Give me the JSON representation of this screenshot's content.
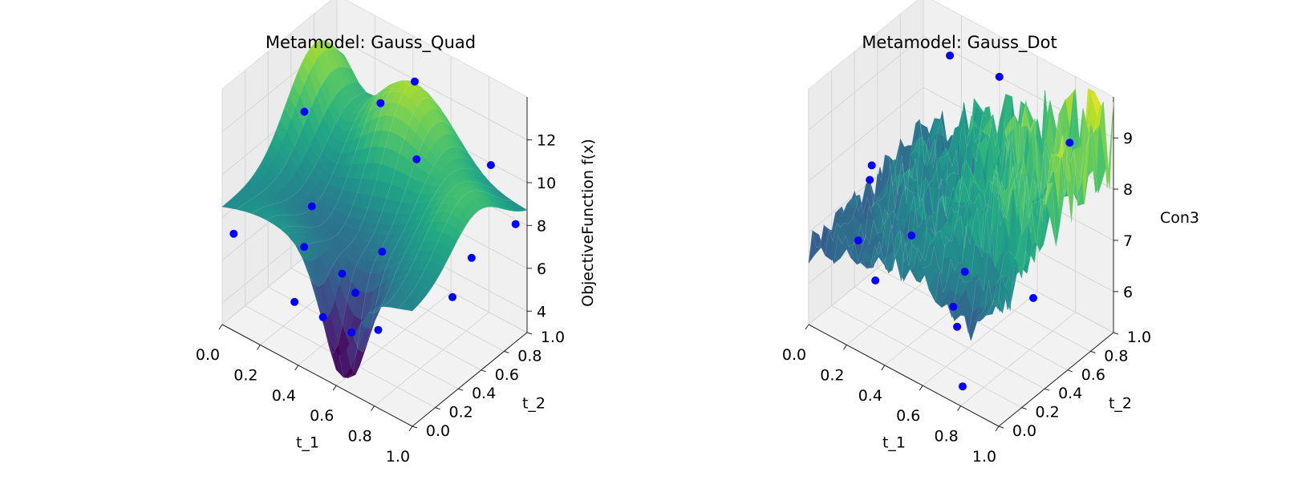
{
  "chart_data": [
    {
      "type": "surface3d",
      "title": "Metamodel: Gauss_Quad",
      "xlabel": "t_1",
      "ylabel": "t_2",
      "zlabel": "ObjectiveFunction f(x)",
      "xticks": [
        "0.0",
        "0.2",
        "0.4",
        "0.6",
        "0.8",
        "1.0"
      ],
      "yticks": [
        "0.0",
        "0.2",
        "0.4",
        "0.6",
        "0.8",
        "1.0"
      ],
      "zticks": [
        "4",
        "6",
        "8",
        "10",
        "12"
      ],
      "xlim": [
        0,
        1
      ],
      "ylim": [
        0,
        1
      ],
      "zlim": [
        3,
        14
      ],
      "colormap": "viridis",
      "point_color": "#0000ff",
      "surface": "smooth",
      "points": [
        {
          "x": 0.1,
          "y": 0.55,
          "z": 11.0
        },
        {
          "x": 0.0,
          "y": 0.1,
          "z": 6.8
        },
        {
          "x": 0.2,
          "y": 0.45,
          "z": 7.5
        },
        {
          "x": 0.35,
          "y": 0.8,
          "z": 11.5
        },
        {
          "x": 0.5,
          "y": 0.85,
          "z": 13.0
        },
        {
          "x": 0.6,
          "y": 0.7,
          "z": 10.5
        },
        {
          "x": 0.9,
          "y": 0.85,
          "z": 11.0
        },
        {
          "x": 0.25,
          "y": 0.3,
          "z": 6.5
        },
        {
          "x": 0.45,
          "y": 0.3,
          "z": 6.2
        },
        {
          "x": 0.6,
          "y": 0.4,
          "z": 7.5
        },
        {
          "x": 0.55,
          "y": 0.25,
          "z": 6.0
        },
        {
          "x": 0.7,
          "y": 0.2,
          "z": 5.2
        },
        {
          "x": 0.95,
          "y": 0.6,
          "z": 8.0
        },
        {
          "x": 1.0,
          "y": 0.35,
          "z": 7.5
        },
        {
          "x": 1.0,
          "y": 0.9,
          "z": 8.5
        },
        {
          "x": 0.35,
          "y": 0.05,
          "z": 5.5
        },
        {
          "x": 0.5,
          "y": 0.05,
          "z": 5.5
        },
        {
          "x": 0.65,
          "y": 0.05,
          "z": 5.5
        }
      ]
    },
    {
      "type": "surface3d",
      "title": "Metamodel: Gauss_Dot",
      "xlabel": "t_1",
      "ylabel": "t_2",
      "zlabel": "Con3",
      "xticks": [
        "0.0",
        "0.2",
        "0.4",
        "0.6",
        "0.8",
        "1.0"
      ],
      "yticks": [
        "0.0",
        "0.2",
        "0.4",
        "0.6",
        "0.8",
        "1.0"
      ],
      "zticks": [
        "6",
        "7",
        "8",
        "9"
      ],
      "xlim": [
        0,
        1
      ],
      "ylim": [
        0,
        1
      ],
      "zlim": [
        5.2,
        9.8
      ],
      "colormap": "viridis",
      "point_color": "#0000ff",
      "surface": "noisy",
      "points": [
        {
          "x": 0.0,
          "y": 0.55,
          "z": 7.3
        },
        {
          "x": 0.05,
          "y": 0.45,
          "z": 7.3
        },
        {
          "x": 0.05,
          "y": 0.35,
          "z": 6.3
        },
        {
          "x": 0.2,
          "y": 0.9,
          "z": 9.2
        },
        {
          "x": 0.4,
          "y": 1.0,
          "z": 9.0
        },
        {
          "x": 0.3,
          "y": 0.4,
          "z": 6.8
        },
        {
          "x": 0.2,
          "y": 0.25,
          "z": 6.0
        },
        {
          "x": 0.55,
          "y": 0.45,
          "z": 6.5
        },
        {
          "x": 0.55,
          "y": 0.35,
          "z": 6.0
        },
        {
          "x": 0.6,
          "y": 0.3,
          "z": 5.8
        },
        {
          "x": 0.75,
          "y": 0.1,
          "z": 5.3
        },
        {
          "x": 0.85,
          "y": 0.55,
          "z": 6.4
        },
        {
          "x": 0.8,
          "y": 0.95,
          "z": 8.6
        }
      ]
    }
  ]
}
